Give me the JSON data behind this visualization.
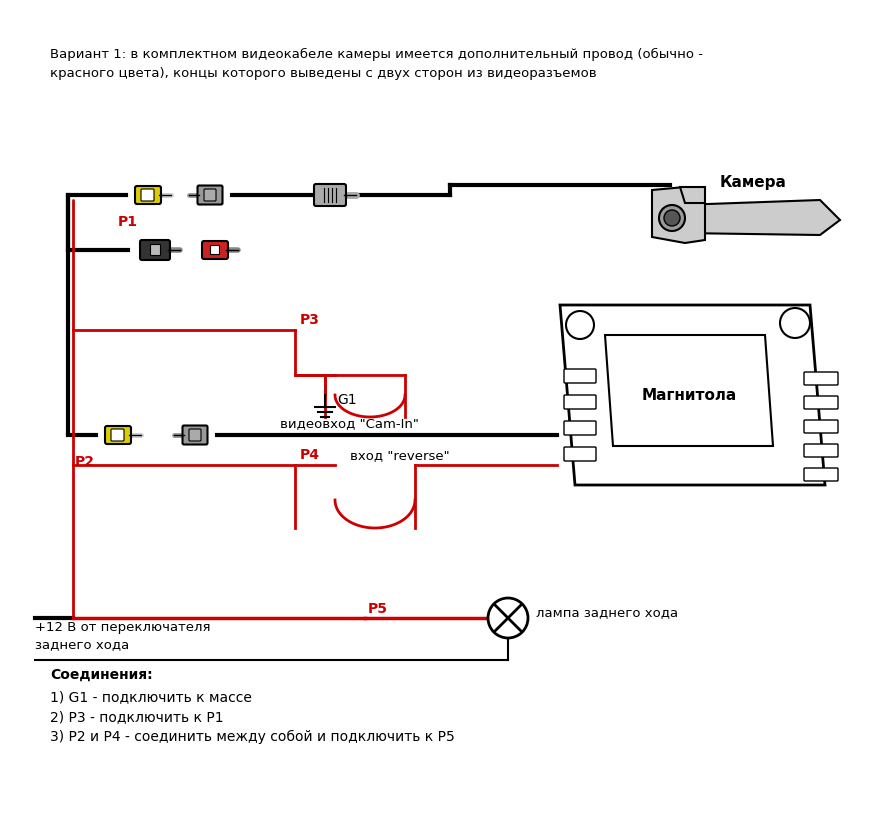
{
  "title_text": "Вариант 1: в комплектном видеокабеле камеры имеется дополнительный провод (обычно -\nкрасного цвета), концы которого выведены с двух сторон из видеоразъемов",
  "label_kamera": "Камера",
  "label_magnitola": "Магнитола",
  "label_P1": "P1",
  "label_P2": "P2",
  "label_P3": "P3",
  "label_P4": "P4",
  "label_P5": "P5",
  "label_G1": "G1",
  "label_cam_in": "видеовход \"Cam-In\"",
  "label_reverse": "вход \"reverse\"",
  "label_lamp": "лампа заднего хода",
  "label_plus12_1": "+12 В от переключателя",
  "label_plus12_2": "заднего хода",
  "connections_title": "Соединения:",
  "connection1": "1) G1 - подключить к массе",
  "connection2": "2) P3 - подключить к P1",
  "connection3": "3) P2 и P4 - соединить между собой и подключить к P5",
  "bg_color": "#ffffff",
  "black": "#000000",
  "red": "#cc0000",
  "yellow": "#ddcc00",
  "gray": "#aaaaaa",
  "darkgray": "#555555",
  "lightgray": "#cccccc"
}
